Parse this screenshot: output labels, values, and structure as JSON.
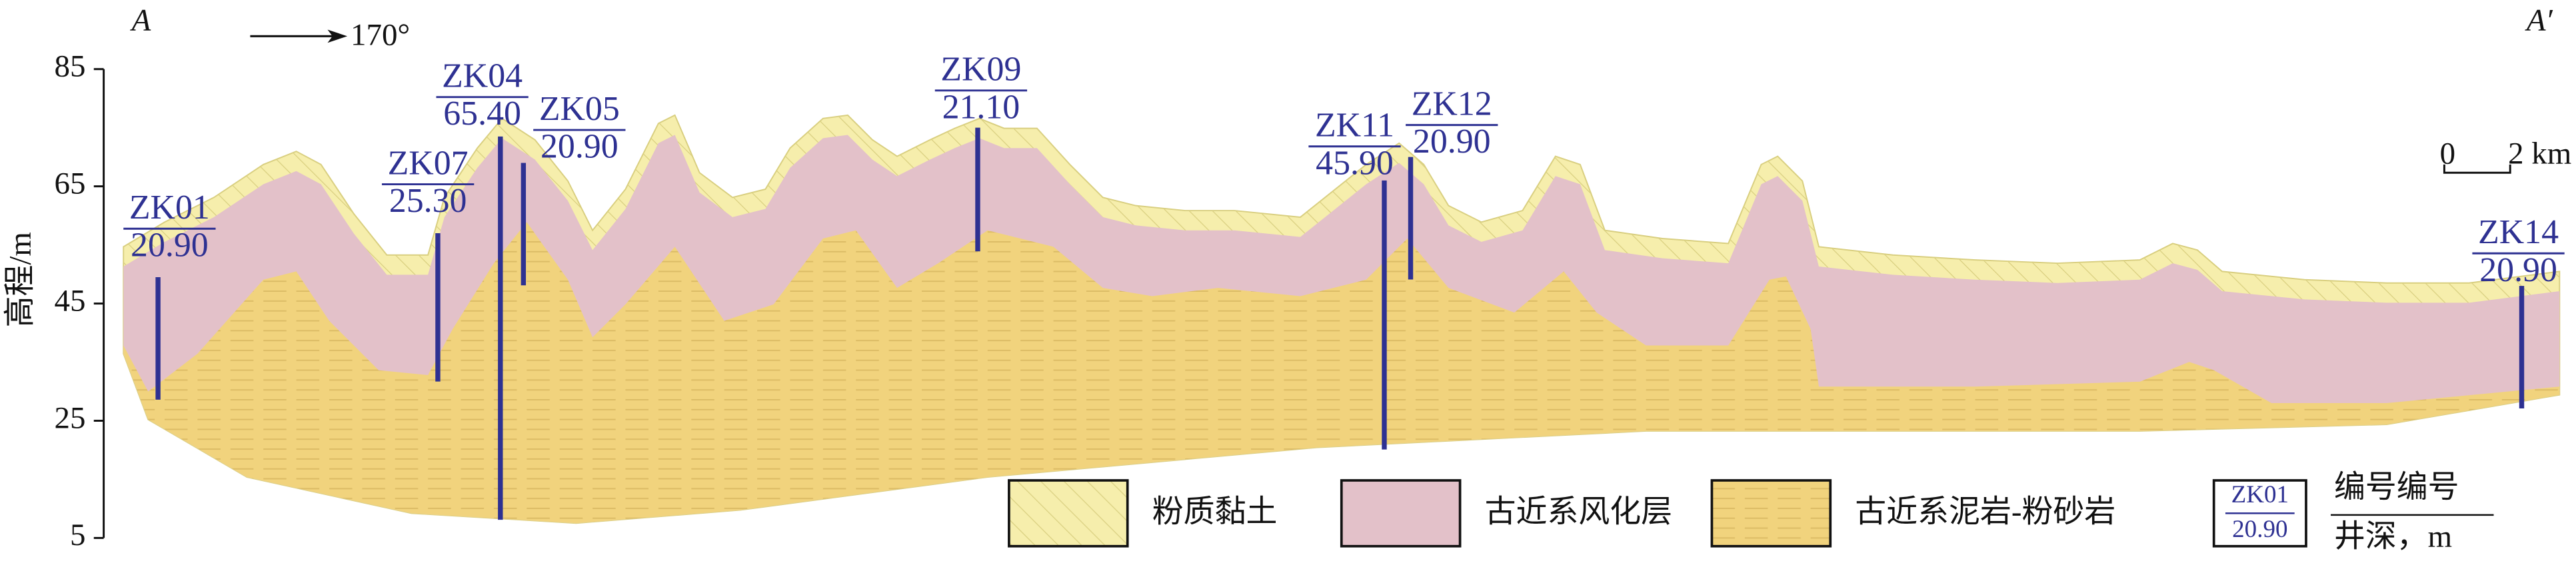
{
  "header": {
    "left_label": "A",
    "right_label": "A′",
    "direction": "170°"
  },
  "chart_data": {
    "type": "section",
    "ylabel": "高程/m",
    "ylim": [
      5,
      85
    ],
    "yticks": [
      5,
      25,
      45,
      65,
      85
    ],
    "boreholes": [
      {
        "name": "ZK01",
        "top": 49.5,
        "depth": 20.9,
        "depth_label": "20.90"
      },
      {
        "name": "ZK07",
        "top": 57,
        "depth": 25.3,
        "depth_label": "25.30"
      },
      {
        "name": "ZK04",
        "top": 73.5,
        "depth": 65.4,
        "depth_label": "65.40"
      },
      {
        "name": "ZK05",
        "top": 69,
        "depth": 20.9,
        "depth_label": "20.90"
      },
      {
        "name": "ZK09",
        "top": 75,
        "depth": 21.1,
        "depth_label": "21.10"
      },
      {
        "name": "ZK11",
        "top": 66,
        "depth": 45.9,
        "depth_label": "45.90"
      },
      {
        "name": "ZK12",
        "top": 70,
        "depth": 20.9,
        "depth_label": "20.90"
      },
      {
        "name": "ZK14",
        "top": 48,
        "depth": 20.9,
        "depth_label": "20.90"
      }
    ]
  },
  "scale_bar": {
    "start": "0",
    "end": "2 km"
  },
  "legend": {
    "items": [
      "粉质黏土",
      "古近系风化层",
      "古近系泥岩-粉砂岩"
    ],
    "borehole_example": {
      "id": "ZK01",
      "depth": "20.90"
    },
    "borehole_caption": [
      "编号编号",
      "井深，m"
    ]
  }
}
